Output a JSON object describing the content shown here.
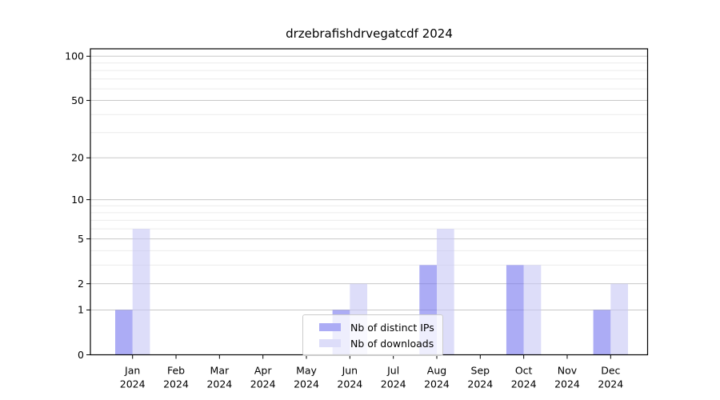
{
  "chart_data": {
    "type": "bar",
    "title": "drzebrafishdrvegatcdf 2024",
    "categories": [
      "Jan 2024",
      "Feb 2024",
      "Mar 2024",
      "Apr 2024",
      "May 2024",
      "Jun 2024",
      "Jul 2024",
      "Aug 2024",
      "Sep 2024",
      "Oct 2024",
      "Nov 2024",
      "Dec 2024"
    ],
    "series": [
      {
        "name": "Nb of distinct IPs",
        "color": "#7474ee",
        "values": [
          1,
          0,
          0,
          0,
          0,
          1,
          0,
          3,
          0,
          3,
          0,
          1
        ]
      },
      {
        "name": "Nb of downloads",
        "color": "#c6c6f5",
        "values": [
          6,
          0,
          0,
          0,
          0,
          2,
          0,
          6,
          0,
          3,
          0,
          2
        ]
      }
    ],
    "bar_alpha": 0.6,
    "yscale": "log1p",
    "ylim": [
      0,
      112
    ],
    "yticks": [
      0,
      1,
      2,
      5,
      10,
      20,
      50,
      100
    ],
    "yticks_minor": [
      3,
      4,
      6,
      7,
      8,
      9,
      30,
      40,
      60,
      70,
      80,
      90
    ],
    "grid": true,
    "legend_position": "lower center",
    "grid_major_color": "#c8c8c8",
    "grid_minor_color": "#ececec",
    "axis_color": "#000000"
  }
}
